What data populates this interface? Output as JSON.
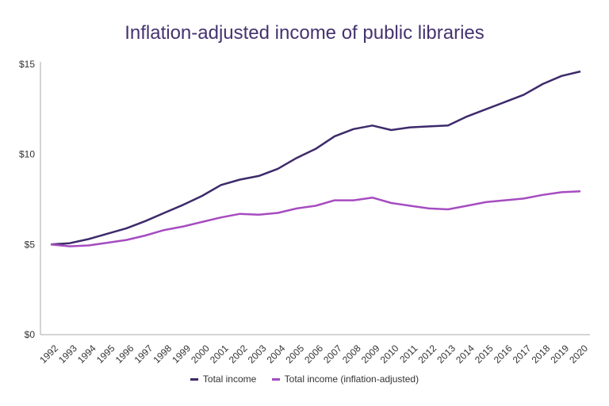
{
  "chart_data": {
    "type": "line",
    "title": "Inflation-adjusted income of public libraries",
    "xlabel": "",
    "ylabel": "",
    "ylim": [
      0,
      15
    ],
    "y_ticks": [
      "$0",
      "$5",
      "$10",
      "$15"
    ],
    "y_tick_values": [
      0,
      5,
      10,
      15
    ],
    "grid": false,
    "legend_position": "bottom",
    "x": [
      "1992",
      "1993",
      "1994",
      "1995",
      "1996",
      "1997",
      "1998",
      "1999",
      "2000",
      "2001",
      "2002",
      "2003",
      "2004",
      "2005",
      "2006",
      "2007",
      "2008",
      "2009",
      "2010",
      "2011",
      "2012",
      "2013",
      "2014",
      "2015",
      "2016",
      "2017",
      "2018",
      "2019",
      "2020"
    ],
    "series": [
      {
        "name": "Total income",
        "color": "#3d2a6b",
        "values": [
          5.0,
          5.07,
          5.3,
          5.6,
          5.9,
          6.3,
          6.75,
          7.2,
          7.7,
          8.3,
          8.6,
          8.8,
          9.2,
          9.8,
          10.3,
          11.0,
          11.4,
          11.6,
          11.35,
          11.5,
          11.55,
          11.6,
          12.1,
          12.5,
          12.9,
          13.3,
          13.9,
          14.35,
          14.6
        ]
      },
      {
        "name": "Total income (inflation-adjusted)",
        "color": "#a64cc0",
        "values": [
          5.0,
          4.9,
          4.95,
          5.1,
          5.25,
          5.5,
          5.8,
          6.0,
          6.25,
          6.5,
          6.7,
          6.65,
          6.75,
          7.0,
          7.15,
          7.45,
          7.45,
          7.6,
          7.3,
          7.15,
          7.0,
          6.95,
          7.15,
          7.35,
          7.45,
          7.55,
          7.75,
          7.9,
          7.95
        ]
      }
    ]
  }
}
